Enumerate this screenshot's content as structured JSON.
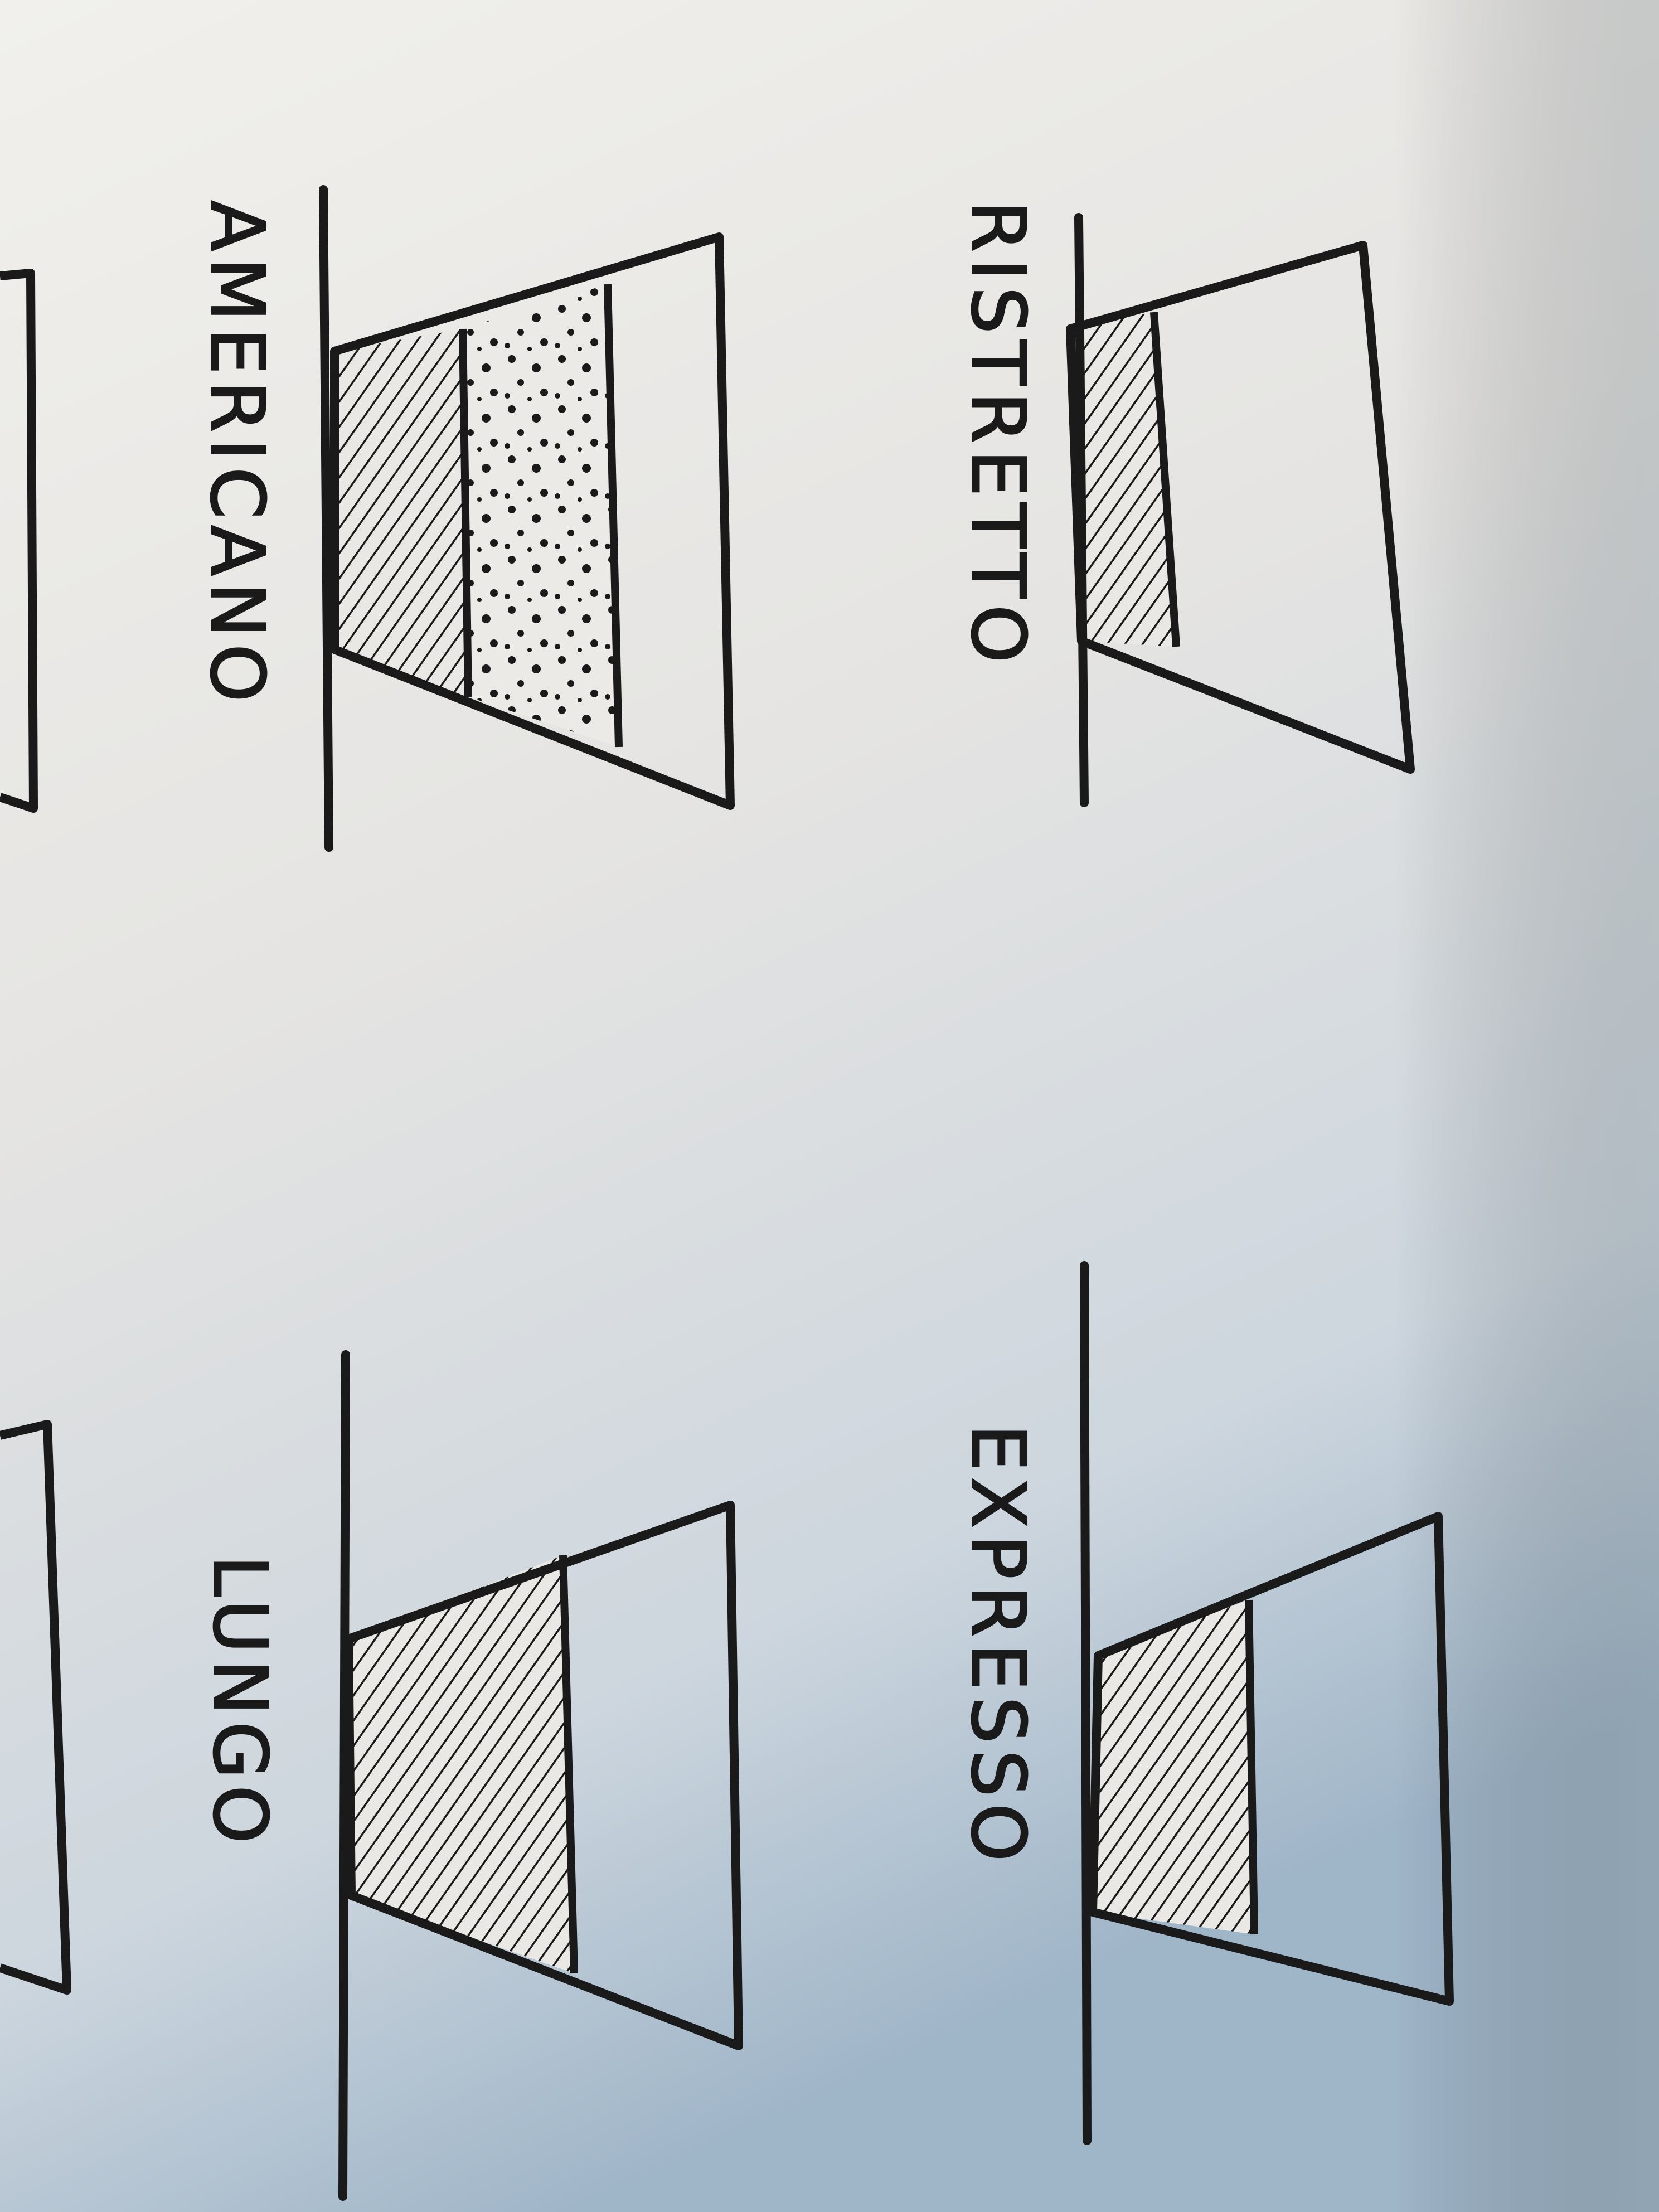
{
  "drinks": [
    {
      "name": "RISTRETTO",
      "coffee_fill_fraction": 0.2,
      "second_layer": null
    },
    {
      "name": "EXPRESSO",
      "coffee_fill_fraction": 0.33,
      "second_layer": null
    },
    {
      "name": "AMERICANO",
      "coffee_fill_fraction": 0.3,
      "second_layer": "dotted"
    },
    {
      "name": "LUNGO",
      "coffee_fill_fraction": 0.55,
      "second_layer": null
    }
  ],
  "colors": {
    "ink": "#1a1a1a",
    "paper_light": "#f1f0ec",
    "paper_dark": "#9fb5c8"
  }
}
